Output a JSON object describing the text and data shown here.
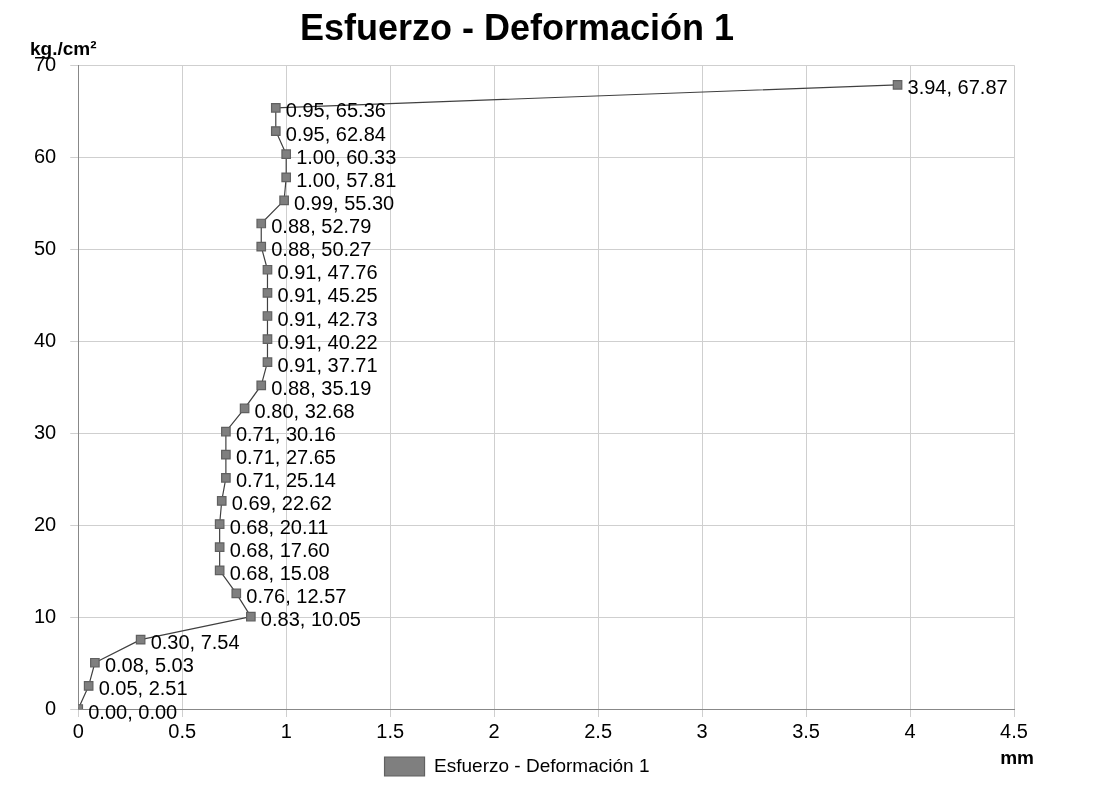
{
  "chart_data": {
    "type": "line",
    "title": "Esfuerzo - Deformación 1",
    "xlabel": "mm",
    "ylabel": "kg./cm²",
    "x": [
      0.0,
      0.05,
      0.08,
      0.3,
      0.83,
      0.76,
      0.68,
      0.68,
      0.68,
      0.69,
      0.71,
      0.71,
      0.71,
      0.8,
      0.88,
      0.91,
      0.91,
      0.91,
      0.91,
      0.91,
      0.88,
      0.88,
      0.99,
      1.0,
      1.0,
      0.95,
      0.95,
      3.94
    ],
    "series": [
      {
        "name": "Esfuerzo - Deformación 1",
        "color": "#7f7f7f",
        "values": [
          0.0,
          2.51,
          5.03,
          7.54,
          10.05,
          12.57,
          15.08,
          17.6,
          20.11,
          22.62,
          25.14,
          27.65,
          30.16,
          32.68,
          35.19,
          37.71,
          40.22,
          42.73,
          45.25,
          47.76,
          50.27,
          52.79,
          55.3,
          57.81,
          60.33,
          62.84,
          65.36,
          67.87
        ],
        "value_labels": [
          "0.00, 0.00",
          "0.05, 2.51",
          "0.08, 5.03",
          "0.30, 7.54",
          "0.83, 10.05",
          "0.76, 12.57",
          "0.68, 15.08",
          "0.68, 17.60",
          "0.68, 20.11",
          "0.69, 22.62",
          "0.71, 25.14",
          "0.71, 27.65",
          "0.71, 30.16",
          "0.80, 32.68",
          "0.88, 35.19",
          "0.91, 37.71",
          "0.91, 40.22",
          "0.91, 42.73",
          "0.91, 45.25",
          "0.91, 47.76",
          "0.88, 50.27",
          "0.88, 52.79",
          "0.99, 55.30",
          "1.00, 57.81",
          "1.00, 60.33",
          "0.95, 62.84",
          "0.95, 65.36",
          "3.94, 67.87"
        ]
      }
    ],
    "xlim": [
      0,
      4.5
    ],
    "xticks": [
      0,
      0.5,
      1,
      1.5,
      2,
      2.5,
      3,
      3.5,
      4,
      4.5
    ],
    "ylim": [
      0,
      70
    ],
    "yticks": [
      0,
      10,
      20,
      30,
      40,
      50,
      60,
      70
    ],
    "grid": true,
    "legend": "bottom",
    "marker": "square",
    "line_style": "solid"
  }
}
